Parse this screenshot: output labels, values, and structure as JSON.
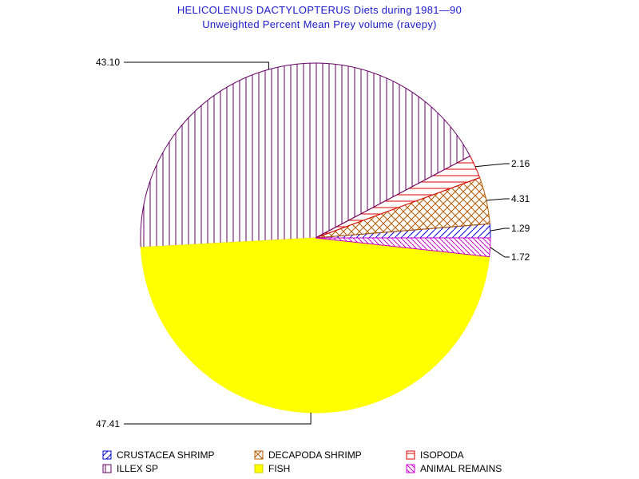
{
  "title": "HELICOLENUS DACTYLOPTERUS Diets during 1981—90",
  "subtitle": "Unweighted Percent Mean Prey volume (ravepy)",
  "chart_data": {
    "type": "pie",
    "start_angle_deg": 0,
    "direction": "counterclockwise",
    "slices": [
      {
        "name": "CRUSTACEA SHRIMP",
        "value": 1.29,
        "label": "1.29",
        "color": "#0000cc",
        "pattern": "diag-right"
      },
      {
        "name": "DECAPODA SHRIMP",
        "value": 4.31,
        "label": "4.31",
        "color": "#b35900",
        "pattern": "crosshatch"
      },
      {
        "name": "ISOPODA",
        "value": 2.16,
        "label": "2.16",
        "color": "#dd0000",
        "pattern": "horizontal"
      },
      {
        "name": "ILLEX SP",
        "value": 43.1,
        "label": "43.10",
        "color": "#660066",
        "pattern": "vertical"
      },
      {
        "name": "FISH",
        "value": 47.41,
        "label": "47.41",
        "color": "#ffff00",
        "pattern": "solid"
      },
      {
        "name": "ANIMAL REMAINS",
        "value": 1.72,
        "label": "1.72",
        "color": "#cc00cc",
        "pattern": "diag-left"
      }
    ],
    "legend_position": "bottom"
  }
}
